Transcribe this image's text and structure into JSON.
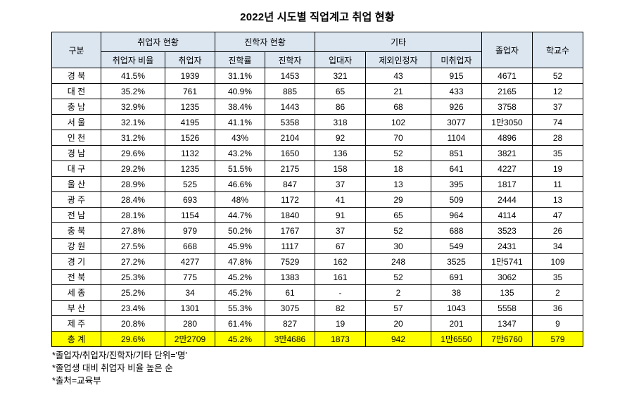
{
  "title": "2022년 시도별 직업계고 취업 현황",
  "colors": {
    "header_bg": "#DCE6F1",
    "total_row_bg": "#FFFF00",
    "border": "#000000",
    "text": "#000000"
  },
  "table": {
    "group_headers": [
      {
        "label": "구분"
      },
      {
        "label": "취업자 현황"
      },
      {
        "label": "진학자 현황"
      },
      {
        "label": "기타"
      },
      {
        "label": "졸업자"
      },
      {
        "label": "학교수"
      }
    ],
    "sub_headers": [
      "취업자 비율",
      "취업자",
      "진학률",
      "진학자",
      "입대자",
      "제외인정자",
      "미취업자"
    ]
  },
  "chart_data": {
    "type": "table",
    "title": "2022년 시도별 직업계고 취업 현황",
    "columns": [
      "구분",
      "취업자 비율",
      "취업자",
      "진학률",
      "진학자",
      "입대자",
      "제외인정자",
      "미취업자",
      "졸업자",
      "학교수"
    ],
    "rows": [
      [
        "경 북",
        "41.5%",
        "1939",
        "31.1%",
        "1453",
        "321",
        "43",
        "915",
        "4671",
        "52"
      ],
      [
        "대 전",
        "35.2%",
        "761",
        "40.9%",
        "885",
        "65",
        "21",
        "433",
        "2165",
        "12"
      ],
      [
        "충 남",
        "32.9%",
        "1235",
        "38.4%",
        "1443",
        "86",
        "68",
        "926",
        "3758",
        "37"
      ],
      [
        "서 울",
        "32.1%",
        "4195",
        "41.1%",
        "5358",
        "318",
        "102",
        "3077",
        "1만3050",
        "74"
      ],
      [
        "인 천",
        "31.2%",
        "1526",
        "43%",
        "2104",
        "92",
        "70",
        "1104",
        "4896",
        "28"
      ],
      [
        "경 남",
        "29.6%",
        "1132",
        "43.2%",
        "1650",
        "136",
        "52",
        "851",
        "3821",
        "35"
      ],
      [
        "대 구",
        "29.2%",
        "1235",
        "51.5%",
        "2175",
        "158",
        "18",
        "641",
        "4227",
        "19"
      ],
      [
        "울 산",
        "28.9%",
        "525",
        "46.6%",
        "847",
        "37",
        "13",
        "395",
        "1817",
        "11"
      ],
      [
        "광 주",
        "28.4%",
        "693",
        "48%",
        "1172",
        "41",
        "29",
        "509",
        "2444",
        "13"
      ],
      [
        "전 남",
        "28.1%",
        "1154",
        "44.7%",
        "1840",
        "91",
        "65",
        "964",
        "4114",
        "47"
      ],
      [
        "충 북",
        "27.8%",
        "979",
        "50.2%",
        "1767",
        "37",
        "52",
        "688",
        "3523",
        "26"
      ],
      [
        "강 원",
        "27.5%",
        "668",
        "45.9%",
        "1117",
        "67",
        "30",
        "549",
        "2431",
        "34"
      ],
      [
        "경 기",
        "27.2%",
        "4277",
        "47.8%",
        "7529",
        "162",
        "248",
        "3525",
        "1만5741",
        "109"
      ],
      [
        "전 북",
        "25.3%",
        "775",
        "45.2%",
        "1383",
        "161",
        "52",
        "691",
        "3062",
        "35"
      ],
      [
        "세 종",
        "25.2%",
        "34",
        "45.2%",
        "61",
        "-",
        "2",
        "38",
        "135",
        "2"
      ],
      [
        "부 산",
        "23.4%",
        "1301",
        "55.3%",
        "3075",
        "82",
        "57",
        "1043",
        "5558",
        "36"
      ],
      [
        "제 주",
        "20.8%",
        "280",
        "61.4%",
        "827",
        "19",
        "20",
        "201",
        "1347",
        "9"
      ]
    ],
    "total_row": [
      "총 계",
      "29.6%",
      "2만2709",
      "45.2%",
      "3만4686",
      "1873",
      "942",
      "1만6550",
      "7만6760",
      "579"
    ]
  },
  "notes": [
    "*졸업자/취업자/진학자/기타 단위='명'",
    "*졸업생 대비 취업자 비율 높은 순",
    "*출처=교육부"
  ]
}
